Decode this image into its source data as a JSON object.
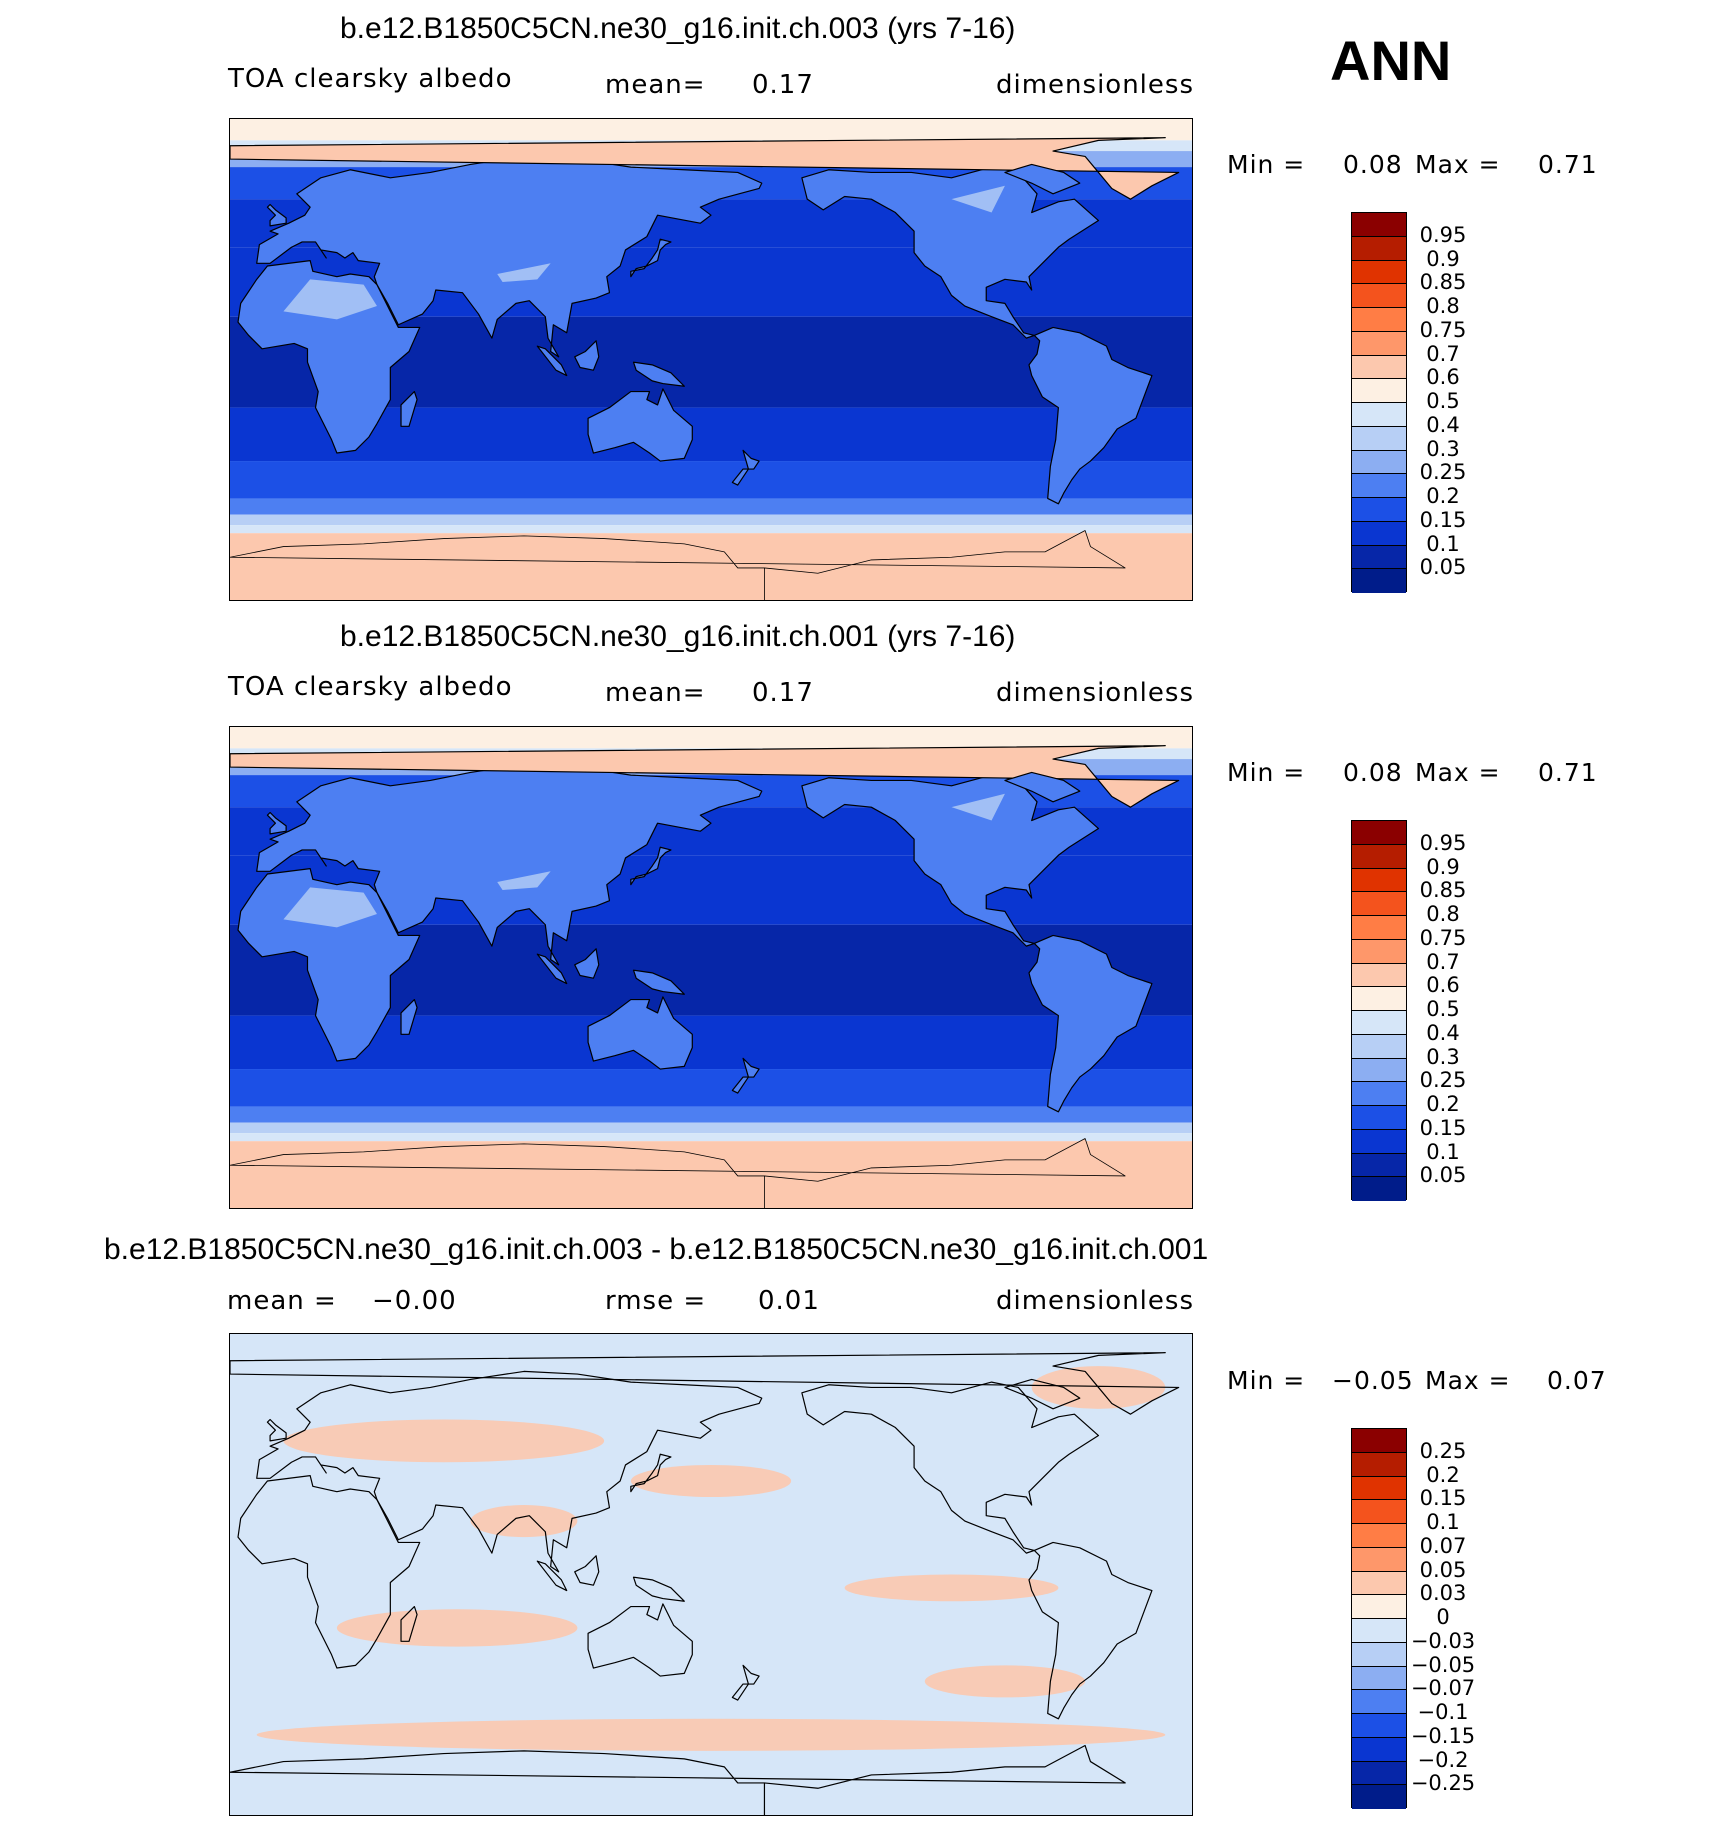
{
  "season_label": "ANN",
  "panels": [
    {
      "title": "b.e12.B1850C5CN.ne30_g16.init.ch.003 (yrs 7-16)",
      "variable_label": "TOA clearsky albedo",
      "stat_label": "mean=",
      "stat_value": "0.17",
      "units": "dimensionless",
      "min_label": "Min =",
      "min_value": "0.08",
      "max_label": "Max =",
      "max_value": "0.71",
      "colorbar": {
        "labels": [
          "0.95",
          "0.9",
          "0.85",
          "0.8",
          "0.75",
          "0.7",
          "0.6",
          "0.5",
          "0.4",
          "0.3",
          "0.25",
          "0.2",
          "0.15",
          "0.1",
          "0.05"
        ],
        "colors": [
          "#8b0000",
          "#b51d00",
          "#e03300",
          "#f4531d",
          "#ff7d45",
          "#fe976a",
          "#fcc8ae",
          "#fdf0e3",
          "#d6e6f8",
          "#b7cff5",
          "#8caef2",
          "#4d7ff2",
          "#1c50e6",
          "#0a36d1",
          "#0626a8",
          "#001c8a"
        ]
      },
      "map_values": {
        "type": "mean_field",
        "range_min": 0.08,
        "range_max": 0.71
      }
    },
    {
      "title": "b.e12.B1850C5CN.ne30_g16.init.ch.001 (yrs 7-16)",
      "variable_label": "TOA clearsky albedo",
      "stat_label": "mean=",
      "stat_value": "0.17",
      "units": "dimensionless",
      "min_label": "Min =",
      "min_value": "0.08",
      "max_label": "Max =",
      "max_value": "0.71",
      "colorbar": {
        "labels": [
          "0.95",
          "0.9",
          "0.85",
          "0.8",
          "0.75",
          "0.7",
          "0.6",
          "0.5",
          "0.4",
          "0.3",
          "0.25",
          "0.2",
          "0.15",
          "0.1",
          "0.05"
        ],
        "colors": [
          "#8b0000",
          "#b51d00",
          "#e03300",
          "#f4531d",
          "#ff7d45",
          "#fe976a",
          "#fcc8ae",
          "#fdf0e3",
          "#d6e6f8",
          "#b7cff5",
          "#8caef2",
          "#4d7ff2",
          "#1c50e6",
          "#0a36d1",
          "#0626a8",
          "#001c8a"
        ]
      },
      "map_values": {
        "type": "mean_field",
        "range_min": 0.08,
        "range_max": 0.71
      }
    },
    {
      "title": "b.e12.B1850C5CN.ne30_g16.init.ch.003 - b.e12.B1850C5CN.ne30_g16.init.ch.001",
      "variable_label": "",
      "stat_label": "mean =",
      "stat_value": "−0.00",
      "stat2_label": "rmse =",
      "stat2_value": "0.01",
      "units": "dimensionless",
      "min_label": "Min =",
      "min_value": "−0.05",
      "max_label": "Max =",
      "max_value": "0.07",
      "colorbar": {
        "labels": [
          "0.25",
          "0.2",
          "0.15",
          "0.1",
          "0.07",
          "0.05",
          "0.03",
          "0",
          "−0.03",
          "−0.05",
          "−0.07",
          "−0.1",
          "−0.15",
          "−0.2",
          "−0.25"
        ],
        "colors": [
          "#8b0000",
          "#b51d00",
          "#e03300",
          "#f4531d",
          "#ff7d45",
          "#fe976a",
          "#fcc8ae",
          "#fdf0e3",
          "#d6e6f8",
          "#b7cff5",
          "#8caef2",
          "#4d7ff2",
          "#1c50e6",
          "#0a36d1",
          "#0626a8",
          "#001c8a"
        ]
      },
      "map_values": {
        "type": "difference_field",
        "range_min": -0.05,
        "range_max": 0.07
      }
    }
  ]
}
